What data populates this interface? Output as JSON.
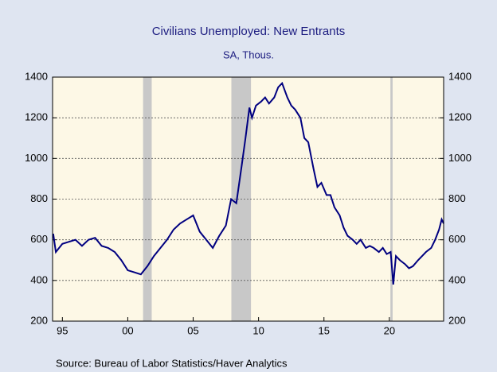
{
  "chart_data": {
    "type": "line",
    "title": "Civilians Unemployed: New Entrants",
    "subtitle": "SA, Thous.",
    "source": "Source:  Bureau of Labor Statistics/Haver Analytics",
    "x": [
      1994.3,
      1994.5,
      1995,
      1995.5,
      1996,
      1996.5,
      1997,
      1997.5,
      1998,
      1998.5,
      1999,
      1999.5,
      2000,
      2000.5,
      2001,
      2001.5,
      2002,
      2002.5,
      2003,
      2003.5,
      2004,
      2004.5,
      2005,
      2005.5,
      2006,
      2006.5,
      2007,
      2007.5,
      2007.9,
      2008.3,
      2008.7,
      2009,
      2009.3,
      2009.5,
      2009.8,
      2010.2,
      2010.5,
      2010.8,
      2011.2,
      2011.5,
      2011.8,
      2012.2,
      2012.5,
      2012.8,
      2013.2,
      2013.5,
      2013.8,
      2014.2,
      2014.5,
      2014.8,
      2015.2,
      2015.5,
      2015.8,
      2016.2,
      2016.5,
      2016.8,
      2017.2,
      2017.5,
      2017.8,
      2018.2,
      2018.5,
      2018.8,
      2019.2,
      2019.5,
      2019.8,
      2020.1,
      2020.3,
      2020.5,
      2020.8,
      2021.2,
      2021.5,
      2021.8,
      2022.2,
      2022.5,
      2022.8,
      2023.2,
      2023.5,
      2023.8,
      2024.0,
      2024.15
    ],
    "series": [
      {
        "name": "New Entrants",
        "color": "#000080",
        "values": [
          630,
          540,
          580,
          590,
          600,
          570,
          600,
          610,
          570,
          560,
          540,
          500,
          450,
          440,
          430,
          470,
          520,
          560,
          600,
          650,
          680,
          700,
          720,
          640,
          600,
          560,
          620,
          670,
          800,
          780,
          960,
          1100,
          1250,
          1200,
          1260,
          1280,
          1300,
          1270,
          1300,
          1350,
          1370,
          1300,
          1260,
          1240,
          1200,
          1100,
          1080,
          950,
          860,
          880,
          820,
          820,
          760,
          720,
          660,
          620,
          600,
          580,
          600,
          560,
          570,
          560,
          540,
          560,
          530,
          540,
          380,
          520,
          500,
          480,
          460,
          470,
          500,
          520,
          540,
          560,
          600,
          650,
          700,
          680
        ]
      }
    ],
    "recessions": [
      [
        2001.17,
        2001.83
      ],
      [
        2007.92,
        2009.42
      ],
      [
        2020.08,
        2020.25
      ]
    ],
    "xlim": [
      1994.25,
      2024.15
    ],
    "xticks": [
      {
        "value": 1995,
        "label": "95"
      },
      {
        "value": 2000,
        "label": "00"
      },
      {
        "value": 2005,
        "label": "05"
      },
      {
        "value": 2010,
        "label": "10"
      },
      {
        "value": 2015,
        "label": "15"
      },
      {
        "value": 2020,
        "label": "20"
      }
    ],
    "ylim": [
      200,
      1400
    ],
    "yticks": [
      200,
      400,
      600,
      800,
      1000,
      1200,
      1400
    ],
    "grid": true
  }
}
